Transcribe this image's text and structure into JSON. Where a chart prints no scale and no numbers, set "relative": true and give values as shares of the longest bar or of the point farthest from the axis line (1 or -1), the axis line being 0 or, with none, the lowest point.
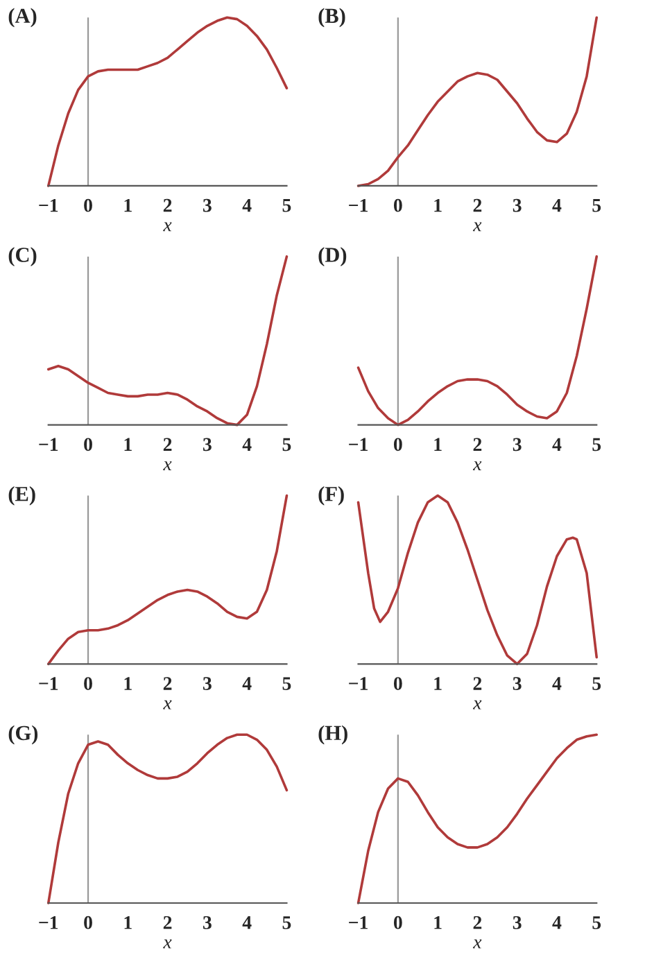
{
  "chart_data": [
    {
      "type": "line",
      "title": "(A)",
      "xlabel": "x",
      "xlim": [
        -1,
        5
      ],
      "xticks": [
        -1,
        0,
        1,
        2,
        3,
        4,
        5
      ],
      "relative": true,
      "ref_lines": [
        {
          "axis": "x",
          "value": 0,
          "color": "#999999"
        }
      ],
      "x": [
        -1,
        -0.75,
        -0.5,
        -0.25,
        0,
        0.25,
        0.5,
        0.75,
        1,
        1.25,
        1.5,
        1.75,
        2,
        2.25,
        2.5,
        2.75,
        3,
        3.25,
        3.5,
        3.75,
        4,
        4.25,
        4.5,
        4.75,
        5
      ],
      "series": [
        {
          "color": "#b03a3a",
          "values": [
            0,
            0.24,
            0.43,
            0.57,
            0.65,
            0.68,
            0.69,
            0.69,
            0.69,
            0.69,
            0.71,
            0.73,
            0.76,
            0.81,
            0.86,
            0.91,
            0.95,
            0.98,
            1.0,
            0.99,
            0.95,
            0.89,
            0.81,
            0.7,
            0.58
          ]
        }
      ]
    },
    {
      "type": "line",
      "title": "(B)",
      "xlabel": "x",
      "xlim": [
        -1,
        5
      ],
      "xticks": [
        -1,
        0,
        1,
        2,
        3,
        4,
        5
      ],
      "relative": true,
      "ref_lines": [
        {
          "axis": "x",
          "value": 0,
          "color": "#999999"
        }
      ],
      "x": [
        -1,
        -0.75,
        -0.5,
        -0.25,
        0,
        0.25,
        0.5,
        0.75,
        1,
        1.25,
        1.5,
        1.75,
        2,
        2.25,
        2.5,
        2.75,
        3,
        3.25,
        3.5,
        3.75,
        4,
        4.25,
        4.5,
        4.75,
        5
      ],
      "series": [
        {
          "color": "#b03a3a",
          "values": [
            0,
            0.01,
            0.04,
            0.09,
            0.17,
            0.24,
            0.33,
            0.42,
            0.5,
            0.56,
            0.62,
            0.65,
            0.67,
            0.66,
            0.63,
            0.56,
            0.49,
            0.4,
            0.32,
            0.27,
            0.26,
            0.31,
            0.44,
            0.65,
            1.0
          ]
        }
      ]
    },
    {
      "type": "line",
      "title": "(C)",
      "xlabel": "x",
      "xlim": [
        -1,
        5
      ],
      "xticks": [
        -1,
        0,
        1,
        2,
        3,
        4,
        5
      ],
      "relative": true,
      "ref_lines": [
        {
          "axis": "x",
          "value": 0,
          "color": "#999999"
        }
      ],
      "x": [
        -1,
        -0.75,
        -0.5,
        -0.25,
        0,
        0.25,
        0.5,
        0.75,
        1,
        1.25,
        1.5,
        1.75,
        2,
        2.25,
        2.5,
        2.75,
        3,
        3.25,
        3.5,
        3.75,
        4,
        4.25,
        4.5,
        4.75,
        5
      ],
      "series": [
        {
          "color": "#b03a3a",
          "values": [
            0.33,
            0.35,
            0.33,
            0.29,
            0.25,
            0.22,
            0.19,
            0.18,
            0.17,
            0.17,
            0.18,
            0.18,
            0.19,
            0.18,
            0.15,
            0.11,
            0.08,
            0.04,
            0.01,
            0,
            0.06,
            0.23,
            0.48,
            0.77,
            1.0
          ]
        }
      ]
    },
    {
      "type": "line",
      "title": "(D)",
      "xlabel": "x",
      "xlim": [
        -1,
        5
      ],
      "xticks": [
        -1,
        0,
        1,
        2,
        3,
        4,
        5
      ],
      "relative": true,
      "ref_lines": [
        {
          "axis": "x",
          "value": 0,
          "color": "#999999"
        }
      ],
      "x": [
        -1,
        -0.75,
        -0.5,
        -0.25,
        0,
        0.25,
        0.5,
        0.75,
        1,
        1.25,
        1.5,
        1.75,
        2,
        2.25,
        2.5,
        2.75,
        3,
        3.25,
        3.5,
        3.75,
        4,
        4.25,
        4.5,
        4.75,
        5
      ],
      "series": [
        {
          "color": "#b03a3a",
          "values": [
            0.34,
            0.2,
            0.1,
            0.04,
            0,
            0.03,
            0.08,
            0.14,
            0.19,
            0.23,
            0.26,
            0.27,
            0.27,
            0.26,
            0.23,
            0.18,
            0.12,
            0.08,
            0.05,
            0.04,
            0.08,
            0.19,
            0.41,
            0.69,
            1.0
          ]
        }
      ]
    },
    {
      "type": "line",
      "title": "(E)",
      "xlabel": "x",
      "xlim": [
        -1,
        5
      ],
      "xticks": [
        -1,
        0,
        1,
        2,
        3,
        4,
        5
      ],
      "relative": true,
      "ref_lines": [
        {
          "axis": "x",
          "value": 0,
          "color": "#999999"
        }
      ],
      "x": [
        -1,
        -0.75,
        -0.5,
        -0.25,
        0,
        0.25,
        0.5,
        0.75,
        1,
        1.25,
        1.5,
        1.75,
        2,
        2.25,
        2.5,
        2.75,
        3,
        3.25,
        3.5,
        3.75,
        4,
        4.25,
        4.5,
        4.75,
        5
      ],
      "series": [
        {
          "color": "#b03a3a",
          "values": [
            0,
            0.08,
            0.15,
            0.19,
            0.2,
            0.2,
            0.21,
            0.23,
            0.26,
            0.3,
            0.34,
            0.38,
            0.41,
            0.43,
            0.44,
            0.43,
            0.4,
            0.36,
            0.31,
            0.28,
            0.27,
            0.31,
            0.44,
            0.67,
            1.0
          ]
        }
      ]
    },
    {
      "type": "line",
      "title": "(F)",
      "xlabel": "x",
      "xlim": [
        -1,
        5
      ],
      "xticks": [
        -1,
        0,
        1,
        2,
        3,
        4,
        5
      ],
      "relative": true,
      "ref_lines": [
        {
          "axis": "x",
          "value": 0,
          "color": "#999999"
        }
      ],
      "x": [
        -1,
        -0.75,
        -0.6,
        -0.45,
        -0.25,
        0,
        0.25,
        0.5,
        0.75,
        1,
        1.25,
        1.5,
        1.75,
        2,
        2.25,
        2.5,
        2.75,
        3,
        3.25,
        3.5,
        3.75,
        4,
        4.25,
        4.4,
        4.5,
        4.75,
        5
      ],
      "series": [
        {
          "color": "#b03a3a",
          "values": [
            0.96,
            0.54,
            0.33,
            0.25,
            0.31,
            0.45,
            0.66,
            0.84,
            0.96,
            1.0,
            0.96,
            0.84,
            0.68,
            0.5,
            0.32,
            0.17,
            0.05,
            0,
            0.06,
            0.23,
            0.46,
            0.64,
            0.74,
            0.75,
            0.74,
            0.54,
            0.04
          ]
        }
      ]
    },
    {
      "type": "line",
      "title": "(G)",
      "xlabel": "x",
      "xlim": [
        -1,
        5
      ],
      "xticks": [
        -1,
        0,
        1,
        2,
        3,
        4,
        5
      ],
      "relative": true,
      "ref_lines": [
        {
          "axis": "x",
          "value": 0,
          "color": "#999999"
        }
      ],
      "x": [
        -1,
        -0.75,
        -0.5,
        -0.25,
        0,
        0.25,
        0.5,
        0.75,
        1,
        1.25,
        1.5,
        1.75,
        2,
        2.25,
        2.5,
        2.75,
        3,
        3.25,
        3.5,
        3.75,
        4,
        4.25,
        4.5,
        4.75,
        5
      ],
      "series": [
        {
          "color": "#b03a3a",
          "values": [
            0,
            0.36,
            0.65,
            0.83,
            0.94,
            0.96,
            0.94,
            0.88,
            0.83,
            0.79,
            0.76,
            0.74,
            0.74,
            0.75,
            0.78,
            0.83,
            0.89,
            0.94,
            0.98,
            1.0,
            1.0,
            0.97,
            0.91,
            0.81,
            0.67
          ]
        }
      ]
    },
    {
      "type": "line",
      "title": "(H)",
      "xlabel": "x",
      "xlim": [
        -1,
        5
      ],
      "xticks": [
        -1,
        0,
        1,
        2,
        3,
        4,
        5
      ],
      "relative": true,
      "ref_lines": [
        {
          "axis": "x",
          "value": 0,
          "color": "#999999"
        }
      ],
      "x": [
        -1,
        -0.75,
        -0.5,
        -0.25,
        0,
        0.25,
        0.5,
        0.75,
        1,
        1.25,
        1.5,
        1.75,
        2,
        2.25,
        2.5,
        2.75,
        3,
        3.25,
        3.5,
        3.75,
        4,
        4.25,
        4.5,
        4.75,
        5
      ],
      "series": [
        {
          "color": "#b03a3a",
          "values": [
            0,
            0.31,
            0.54,
            0.68,
            0.74,
            0.72,
            0.64,
            0.54,
            0.45,
            0.39,
            0.35,
            0.33,
            0.33,
            0.35,
            0.39,
            0.45,
            0.53,
            0.62,
            0.7,
            0.78,
            0.86,
            0.92,
            0.97,
            0.99,
            1.0
          ]
        }
      ]
    }
  ]
}
